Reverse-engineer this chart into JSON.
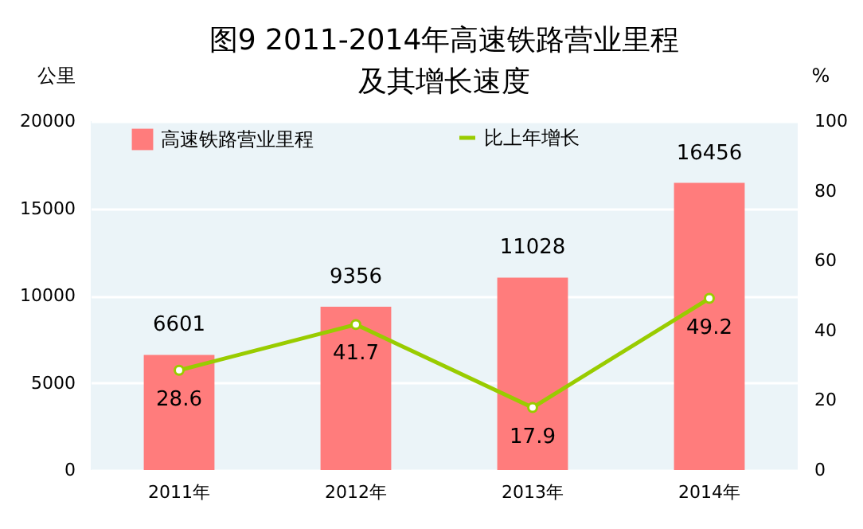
{
  "chart_data": {
    "type": "bar",
    "title": "图9  2011-2014年高速铁路营业里程及其增长速度",
    "ylabel": "公里",
    "y2label": "%",
    "categories": [
      "2011年",
      "2012年",
      "2013年",
      "2014年"
    ],
    "series": [
      {
        "name": "高速铁路营业里程",
        "color": "#ff7c7c",
        "values": [
          6601,
          9356,
          11028,
          16456
        ]
      },
      {
        "name": "比上年增长",
        "type": "line",
        "axis": "y2",
        "color": "#99cc00",
        "values": [
          28.6,
          41.7,
          17.9,
          49.2
        ]
      }
    ],
    "ylim": [
      0,
      20000
    ],
    "yticks": [
      0,
      5000,
      10000,
      15000,
      20000
    ],
    "y2lim": [
      0,
      100
    ],
    "y2ticks": [
      0,
      20,
      40,
      60,
      80,
      100
    ],
    "grid": "y",
    "legend": "top",
    "data_labels": true,
    "marker": "circle",
    "line_style": "solid"
  }
}
